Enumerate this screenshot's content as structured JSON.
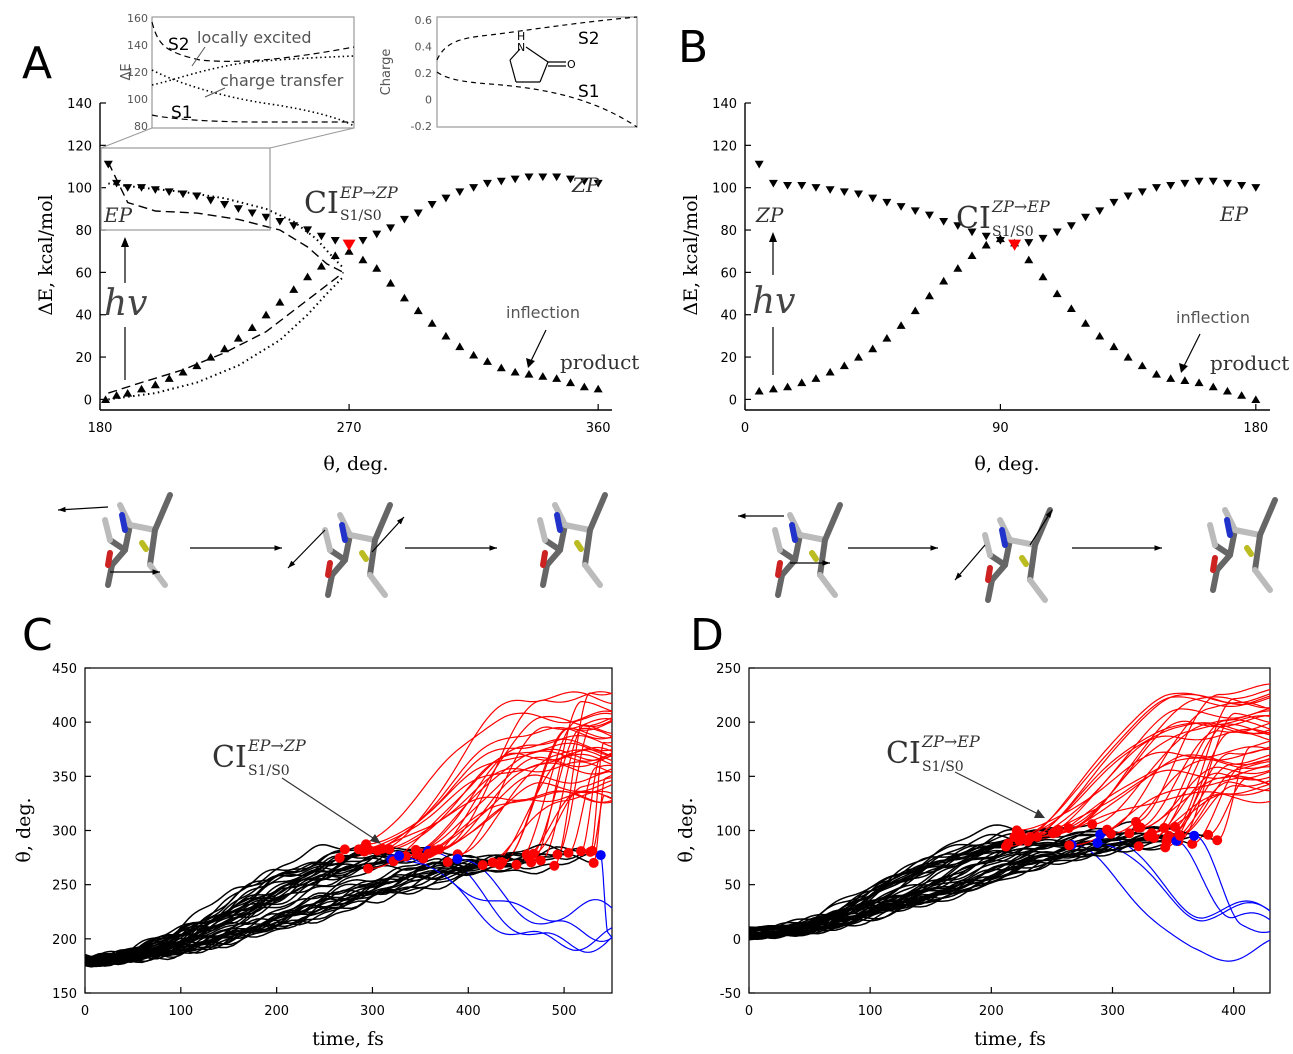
{
  "chart_data": [
    {
      "panel": "A",
      "type": "scatter",
      "xlabel": "θ, deg.",
      "ylabel": "ΔE, kcal/mol",
      "xlim": [
        180,
        365
      ],
      "ylim": [
        -5,
        140
      ],
      "xticks": [
        180,
        270,
        360
      ],
      "yticks": [
        0,
        20,
        40,
        60,
        80,
        100,
        120,
        140
      ],
      "series": [
        {
          "marker": "down-triangle",
          "color": "#000000",
          "x": [
            183,
            186,
            190,
            195,
            200,
            205,
            210,
            215,
            220,
            225,
            230,
            235,
            240,
            245,
            250,
            255,
            260,
            265,
            270,
            275,
            280,
            285,
            290,
            295,
            300,
            305,
            310,
            315,
            320,
            325,
            330,
            335,
            340,
            345,
            350,
            355,
            360
          ],
          "y": [
            111,
            102,
            100,
            100,
            99,
            98,
            97,
            96,
            94,
            92,
            90,
            88,
            86,
            84,
            82,
            80,
            77,
            75,
            73,
            75,
            78,
            81,
            85,
            88,
            92,
            95,
            98,
            100,
            102,
            103,
            104,
            105,
            105,
            105,
            104,
            103,
            102
          ]
        },
        {
          "marker": "up-triangle",
          "color": "#000000",
          "x": [
            182,
            186,
            190,
            195,
            200,
            205,
            210,
            215,
            220,
            225,
            230,
            235,
            240,
            245,
            250,
            255,
            260,
            265,
            270,
            275,
            280,
            285,
            290,
            295,
            300,
            305,
            310,
            315,
            320,
            325,
            330,
            335,
            340,
            345,
            350,
            355,
            360
          ],
          "y": [
            0,
            2,
            3,
            5,
            7,
            10,
            13,
            16,
            20,
            24,
            29,
            34,
            40,
            46,
            52,
            58,
            63,
            68,
            70,
            66,
            62,
            55,
            48,
            42,
            36,
            30,
            25,
            21,
            18,
            15,
            13,
            12,
            11,
            10,
            8,
            6,
            5
          ]
        }
      ],
      "curves": [
        {
          "style": "dashed",
          "x": [
            183,
            190,
            200,
            215,
            230,
            245,
            255,
            262,
            268
          ],
          "y": [
            112,
            93,
            89,
            88,
            85,
            80,
            72,
            64,
            60
          ]
        },
        {
          "style": "dotted",
          "x": [
            183,
            195,
            210,
            225,
            240,
            250,
            258,
            265,
            268
          ],
          "y": [
            102,
            100,
            98,
            95,
            90,
            84,
            76,
            66,
            62
          ]
        },
        {
          "style": "dashed",
          "x": [
            183,
            195,
            210,
            225,
            240,
            250,
            258,
            264,
            268
          ],
          "y": [
            3,
            8,
            14,
            22,
            32,
            42,
            50,
            56,
            60
          ]
        },
        {
          "style": "dotted",
          "x": [
            183,
            200,
            215,
            230,
            245,
            255,
            262,
            268
          ],
          "y": [
            0,
            3,
            8,
            16,
            28,
            40,
            50,
            58
          ]
        }
      ],
      "ci_point": {
        "x": 270,
        "y": 73,
        "color": "#ff0000"
      },
      "annotations": {
        "left_label": "EP",
        "right_label": "ZP",
        "ci_main": "CI",
        "ci_sub": "S1/S0",
        "ci_sup": "EP→ZP",
        "hv": "hv",
        "inflection": "inflection",
        "product": "product"
      },
      "inset_energy": {
        "ylabel": "ΔE",
        "ylim": [
          80,
          160
        ],
        "yticks": [
          80,
          100,
          120,
          140,
          160
        ],
        "labels": {
          "s2": "S2",
          "s1": "S1",
          "locally_excited": "locally excited",
          "charge_transfer": "charge transfer"
        }
      },
      "inset_charge": {
        "ylabel": "Charge",
        "ylim": [
          -0.2,
          0.6
        ],
        "yticks": [
          "0.6",
          "0.4",
          "0.2",
          "0",
          "-0.2"
        ],
        "labels": {
          "s2": "S2",
          "s1": "S1",
          "n": "N",
          "h": "H",
          "o": "O"
        }
      }
    },
    {
      "panel": "B",
      "type": "scatter",
      "xlabel": "θ, deg.",
      "ylabel": "ΔE, kcal/mol",
      "xlim": [
        0,
        185
      ],
      "ylim": [
        -5,
        140
      ],
      "xticks": [
        0,
        90,
        180
      ],
      "yticks": [
        0,
        20,
        40,
        60,
        80,
        100,
        120,
        140
      ],
      "series": [
        {
          "marker": "down-triangle",
          "color": "#000000",
          "x": [
            5,
            10,
            15,
            20,
            25,
            30,
            35,
            40,
            45,
            50,
            55,
            60,
            65,
            70,
            75,
            80,
            85,
            90,
            95,
            100,
            105,
            110,
            115,
            120,
            125,
            130,
            135,
            140,
            145,
            150,
            155,
            160,
            165,
            170,
            175,
            180
          ],
          "y": [
            111,
            102,
            101,
            101,
            100,
            99,
            98,
            97,
            95,
            93,
            91,
            89,
            87,
            84,
            82,
            79,
            77,
            75,
            73,
            74,
            76,
            79,
            82,
            86,
            89,
            93,
            96,
            98,
            100,
            101,
            102,
            103,
            103,
            102,
            101,
            100
          ]
        },
        {
          "marker": "up-triangle",
          "color": "#000000",
          "x": [
            5,
            10,
            15,
            20,
            25,
            30,
            35,
            40,
            45,
            50,
            55,
            60,
            65,
            70,
            75,
            80,
            85,
            90,
            95,
            100,
            105,
            110,
            115,
            120,
            125,
            130,
            135,
            140,
            145,
            150,
            155,
            160,
            165,
            170,
            175,
            180
          ],
          "y": [
            4,
            5,
            6,
            8,
            10,
            13,
            16,
            20,
            24,
            29,
            35,
            42,
            49,
            56,
            62,
            68,
            73,
            76,
            74,
            66,
            58,
            50,
            43,
            36,
            30,
            25,
            20,
            16,
            12,
            10,
            9,
            8,
            6,
            4,
            2,
            0
          ]
        }
      ],
      "ci_point": {
        "x": 95,
        "y": 73,
        "color": "#ff0000"
      },
      "annotations": {
        "left_label": "ZP",
        "right_label": "EP",
        "ci_main": "CI",
        "ci_sub": "S1/S0",
        "ci_sup": "ZP→EP",
        "hv": "hv",
        "inflection": "inflection",
        "product": "product"
      }
    },
    {
      "panel": "C",
      "type": "line",
      "xlabel": "time, fs",
      "ylabel": "θ, deg.",
      "xlim": [
        0,
        550
      ],
      "ylim": [
        150,
        450
      ],
      "xticks": [
        0,
        100,
        200,
        300,
        400,
        500
      ],
      "yticks": [
        150,
        200,
        250,
        300,
        350,
        400,
        450
      ],
      "start_value": 180,
      "ci_level": 275,
      "red_final_range": [
        330,
        430
      ],
      "blue_final_range": [
        180,
        230
      ],
      "hop_time_range": [
        260,
        540
      ],
      "annotation": {
        "ci_main": "CI",
        "ci_sub": "S1/S0",
        "ci_sup": "EP→ZP"
      }
    },
    {
      "panel": "D",
      "type": "line",
      "xlabel": "time, fs",
      "ylabel": "θ, deg.",
      "xlim": [
        0,
        430
      ],
      "ylim": [
        -50,
        250
      ],
      "xticks": [
        0,
        100,
        200,
        300,
        400
      ],
      "yticks": [
        -50,
        0,
        50,
        100,
        150,
        200,
        250
      ],
      "start_value": 5,
      "ci_level": 95,
      "red_final_range": [
        130,
        230
      ],
      "blue_final_range": [
        -15,
        25
      ],
      "hop_time_range": [
        210,
        400
      ],
      "annotation": {
        "ci_main": "CI",
        "ci_sub": "S1/S0",
        "ci_sup": "ZP→EP"
      }
    }
  ],
  "colors": {
    "red": "#ff0000",
    "blue": "#0000ff",
    "black": "#000000",
    "grey": "#555555"
  }
}
